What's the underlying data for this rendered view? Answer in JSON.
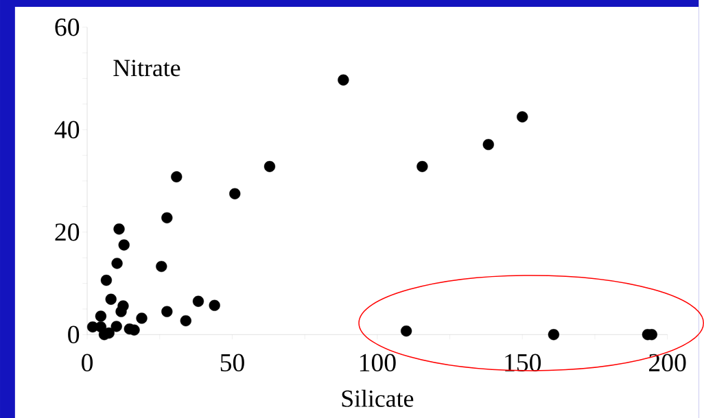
{
  "chart_data": {
    "type": "scatter",
    "xlabel": "Silicate",
    "ylabel": "Nitrate",
    "x": [
      88.3,
      150,
      138.3,
      115.5,
      62.9,
      30.8,
      50.9,
      27.5,
      11,
      12.7,
      10.3,
      25.6,
      6.6,
      8.2,
      12.4,
      11.7,
      38.3,
      43.9,
      27.5,
      34,
      18.8,
      4.7,
      1.9,
      4.7,
      5.9,
      7.5,
      10.1,
      14.6,
      16.2,
      110,
      160.8,
      193.2,
      194.6
    ],
    "values": [
      49.7,
      42.5,
      37.1,
      32.8,
      32.8,
      30.8,
      27.5,
      22.8,
      20.6,
      17.5,
      13.9,
      13.3,
      10.6,
      6.9,
      5.6,
      4.5,
      6.5,
      5.7,
      4.5,
      2.7,
      3.2,
      3.6,
      1.5,
      1.5,
      0,
      0.3,
      1.6,
      1.1,
      0.9,
      0.7,
      0,
      0,
      0
    ],
    "color": "#000000",
    "marker": "circle",
    "xlim": [
      0,
      200
    ],
    "ylim": [
      0,
      60
    ],
    "xticks": [
      0,
      {
        "value": 25,
        "label": null
      },
      50,
      {
        "value": 75,
        "label": null
      },
      100,
      {
        "value": 125,
        "label": null
      },
      150,
      {
        "value": 175,
        "label": null
      },
      200
    ],
    "yticks": [
      0,
      {
        "value": 5,
        "label": null
      },
      {
        "value": 10,
        "label": null
      },
      {
        "value": 15,
        "label": null
      },
      20,
      {
        "value": 25,
        "label": null
      },
      {
        "value": 30,
        "label": null
      },
      {
        "value": 35,
        "label": null
      },
      40,
      {
        "value": 45,
        "label": null
      },
      {
        "value": 50,
        "label": null
      },
      {
        "value": 55,
        "label": null
      },
      60
    ]
  }
}
